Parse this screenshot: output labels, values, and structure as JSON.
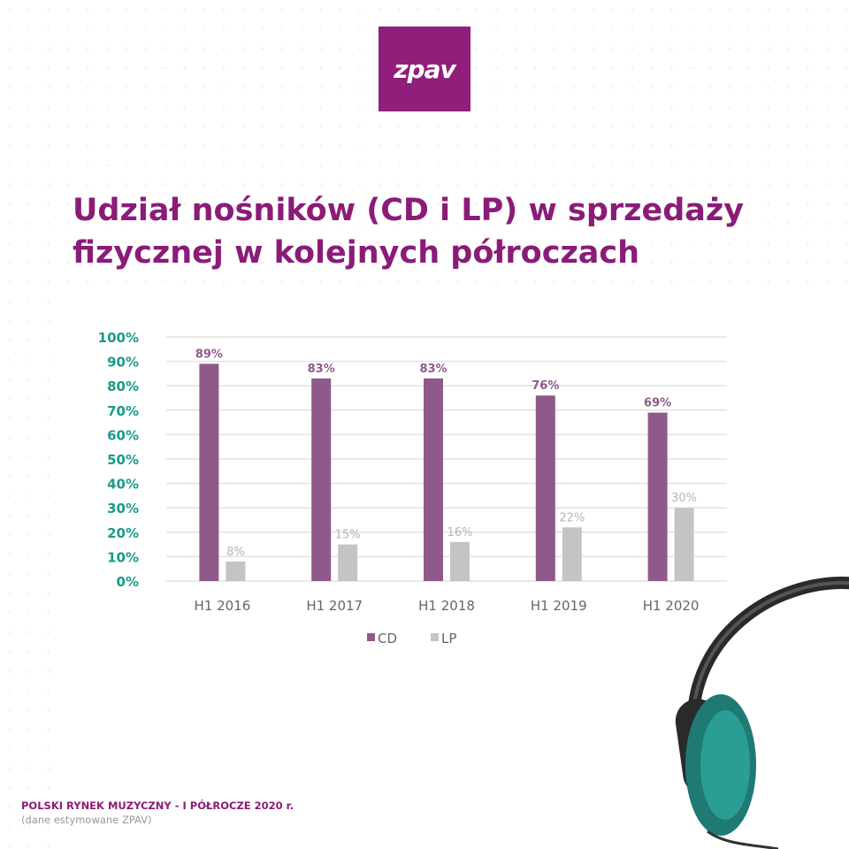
{
  "logo": {
    "text": "zpav"
  },
  "title": "Udział nośników (CD i LP) w sprzedaży fizycznej w kolejnych półroczach",
  "footer": {
    "source": "POLSKI RYNEK MUZYCZNY - I PÓŁROCZE 2020 r.",
    "note": "(dane estymowane ZPAV)"
  },
  "colors": {
    "brand": "#8a1c78",
    "cd": "#8e5a8a",
    "lp": "#c4c4c4",
    "axis": "#1a9a8a"
  },
  "chart_data": {
    "type": "bar",
    "title": "Udział nośników (CD i LP) w sprzedaży fizycznej w kolejnych półroczach",
    "categories": [
      "H1 2016",
      "H1 2017",
      "H1 2018",
      "H1 2019",
      "H1 2020"
    ],
    "series": [
      {
        "name": "CD",
        "values": [
          89,
          83,
          83,
          76,
          69
        ],
        "labels": [
          "89%",
          "83%",
          "83%",
          "76%",
          "69%"
        ]
      },
      {
        "name": "LP",
        "values": [
          8,
          15,
          16,
          22,
          30
        ],
        "labels": [
          "8%",
          "15%",
          "16%",
          "22%",
          "30%"
        ]
      }
    ],
    "yticks": [
      "0%",
      "10%",
      "20%",
      "30%",
      "40%",
      "50%",
      "60%",
      "70%",
      "80%",
      "90%",
      "100%"
    ],
    "ylim": [
      0,
      100
    ],
    "grid": true,
    "legend": "bottom-center"
  }
}
